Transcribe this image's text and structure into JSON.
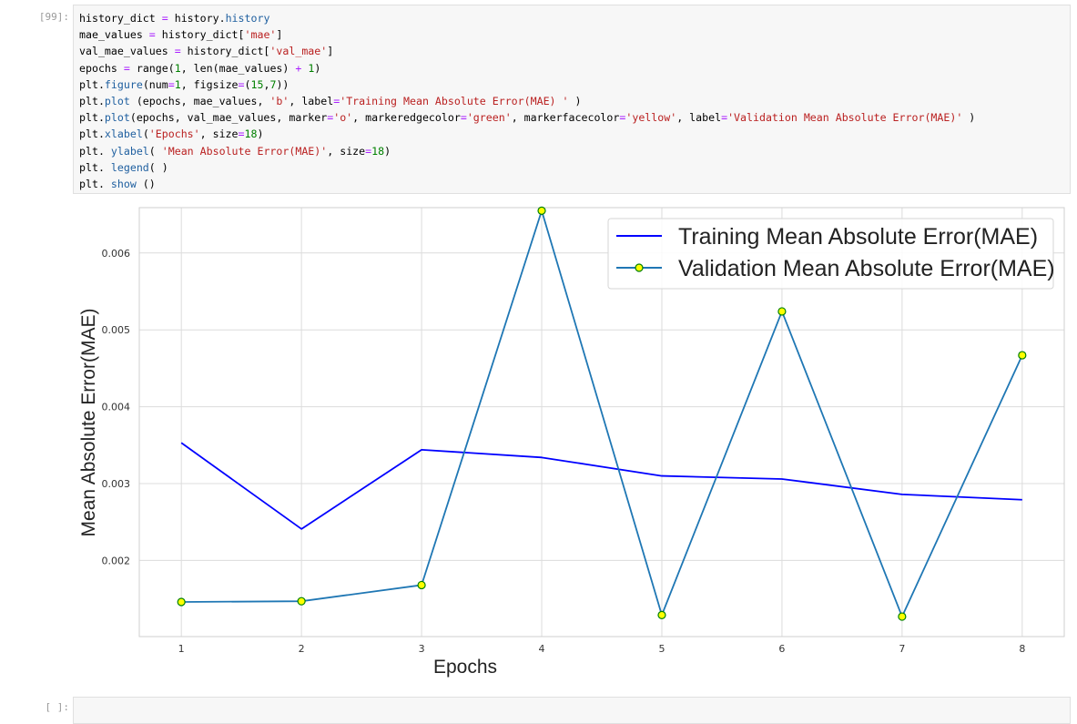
{
  "cells": {
    "input_prompt": "[99]:",
    "empty_prompt": "[ ]:",
    "code_lines": [
      [
        {
          "t": "history_dict "
        },
        {
          "t": "=",
          "c": "tk-op"
        },
        {
          "t": " history."
        },
        {
          "t": "history",
          "c": "tk-fn"
        }
      ],
      [
        {
          "t": "mae_values "
        },
        {
          "t": "=",
          "c": "tk-op"
        },
        {
          "t": " history_dict["
        },
        {
          "t": "'mae'",
          "c": "tk-str"
        },
        {
          "t": "]"
        }
      ],
      [
        {
          "t": "val_mae_values "
        },
        {
          "t": "=",
          "c": "tk-op"
        },
        {
          "t": " history_dict["
        },
        {
          "t": "'val_mae'",
          "c": "tk-str"
        },
        {
          "t": "]"
        }
      ],
      [
        {
          "t": "epochs "
        },
        {
          "t": "=",
          "c": "tk-op"
        },
        {
          "t": " range("
        },
        {
          "t": "1",
          "c": "tk-num"
        },
        {
          "t": ", len(mae_values) "
        },
        {
          "t": "+",
          "c": "tk-op"
        },
        {
          "t": " "
        },
        {
          "t": "1",
          "c": "tk-num"
        },
        {
          "t": ")"
        }
      ],
      [
        {
          "t": "plt."
        },
        {
          "t": "figure",
          "c": "tk-fn"
        },
        {
          "t": "(num"
        },
        {
          "t": "=",
          "c": "tk-op"
        },
        {
          "t": "1",
          "c": "tk-num"
        },
        {
          "t": ", figsize"
        },
        {
          "t": "=",
          "c": "tk-op"
        },
        {
          "t": "("
        },
        {
          "t": "15",
          "c": "tk-num"
        },
        {
          "t": ","
        },
        {
          "t": "7",
          "c": "tk-num"
        },
        {
          "t": "))"
        }
      ],
      [
        {
          "t": "plt."
        },
        {
          "t": "plot",
          "c": "tk-fn"
        },
        {
          "t": " (epochs, mae_values, "
        },
        {
          "t": "'b'",
          "c": "tk-str"
        },
        {
          "t": ", label"
        },
        {
          "t": "=",
          "c": "tk-op"
        },
        {
          "t": "'Training Mean Absolute Error(MAE) '",
          "c": "tk-str"
        },
        {
          "t": " )"
        }
      ],
      [
        {
          "t": "plt."
        },
        {
          "t": "plot",
          "c": "tk-fn"
        },
        {
          "t": "(epochs, val_mae_values, marker"
        },
        {
          "t": "=",
          "c": "tk-op"
        },
        {
          "t": "'o'",
          "c": "tk-str"
        },
        {
          "t": ", markeredgecolor"
        },
        {
          "t": "=",
          "c": "tk-op"
        },
        {
          "t": "'green'",
          "c": "tk-str"
        },
        {
          "t": ", markerfacecolor"
        },
        {
          "t": "=",
          "c": "tk-op"
        },
        {
          "t": "'yellow'",
          "c": "tk-str"
        },
        {
          "t": ", label"
        },
        {
          "t": "=",
          "c": "tk-op"
        },
        {
          "t": "'Validation Mean Absolute Error(MAE)'",
          "c": "tk-str"
        },
        {
          "t": " )"
        }
      ],
      [
        {
          "t": "plt."
        },
        {
          "t": "xlabel",
          "c": "tk-fn"
        },
        {
          "t": "("
        },
        {
          "t": "'Epochs'",
          "c": "tk-str"
        },
        {
          "t": ", size"
        },
        {
          "t": "=",
          "c": "tk-op"
        },
        {
          "t": "18",
          "c": "tk-num"
        },
        {
          "t": ")"
        }
      ],
      [
        {
          "t": "plt. "
        },
        {
          "t": "ylabel",
          "c": "tk-fn"
        },
        {
          "t": "( "
        },
        {
          "t": "'Mean Absolute Error(MAE)'",
          "c": "tk-str"
        },
        {
          "t": ", size"
        },
        {
          "t": "=",
          "c": "tk-op"
        },
        {
          "t": "18",
          "c": "tk-num"
        },
        {
          "t": ")"
        }
      ],
      [
        {
          "t": "plt. "
        },
        {
          "t": "legend",
          "c": "tk-fn"
        },
        {
          "t": "( )"
        }
      ],
      [
        {
          "t": "plt. "
        },
        {
          "t": "show",
          "c": "tk-fn"
        },
        {
          "t": " ()"
        }
      ]
    ]
  },
  "chart_data": {
    "type": "line",
    "title": "",
    "xlabel": "Epochs",
    "ylabel": "Mean Absolute Error(MAE)",
    "x": [
      1,
      2,
      3,
      4,
      5,
      6,
      7,
      8
    ],
    "x_ticks": [
      "1",
      "2",
      "3",
      "4",
      "5",
      "6",
      "7",
      "8"
    ],
    "y_ticks": [
      "0.002",
      "0.003",
      "0.004",
      "0.005",
      "0.006"
    ],
    "y_tick_values": [
      0.002,
      0.003,
      0.004,
      0.005,
      0.006
    ],
    "xlim": [
      0.65,
      8.35
    ],
    "ylim": [
      0.00101,
      0.00659
    ],
    "grid": true,
    "legend_position": "top-right",
    "series": [
      {
        "name": "Training Mean Absolute Error(MAE)",
        "color": "#0000ff",
        "marker": "none",
        "values": [
          0.00353,
          0.00241,
          0.00344,
          0.00334,
          0.0031,
          0.00306,
          0.00286,
          0.00279
        ]
      },
      {
        "name": "Validation Mean Absolute Error(MAE)",
        "color": "#1f77b4",
        "marker": "o",
        "marker_face": "#ffff00",
        "marker_edge": "#008000",
        "values": [
          0.00146,
          0.00147,
          0.00168,
          0.00655,
          0.00129,
          0.00524,
          0.00127,
          0.00467
        ]
      }
    ]
  }
}
